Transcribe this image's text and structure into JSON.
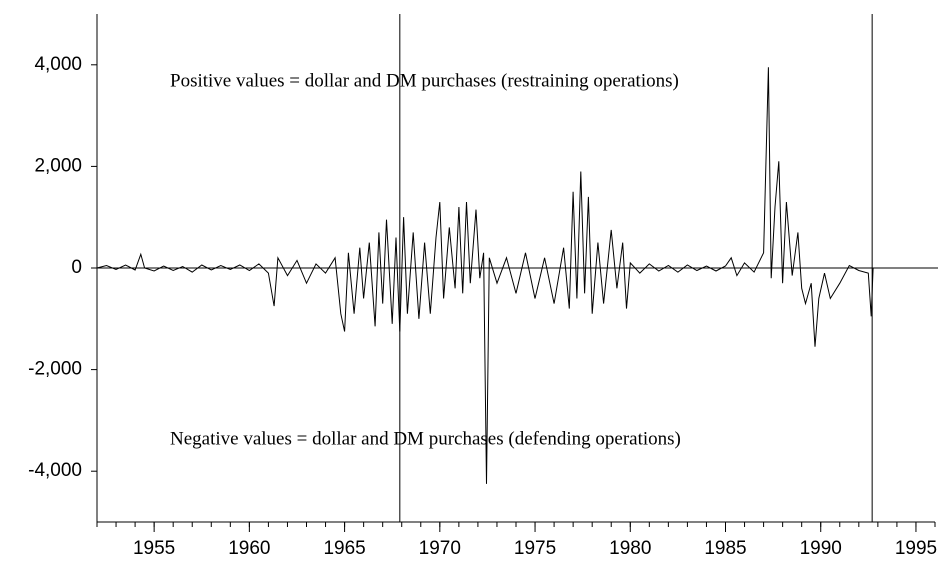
{
  "chart_data": {
    "type": "line",
    "annotations": [
      "Positive values = dollar and DM purchases (restraining operations)",
      "Negative values = dollar and DM purchases (defending operations)"
    ],
    "x": [
      1952.0,
      1952.5,
      1953.0,
      1953.5,
      1954.0,
      1954.3,
      1954.5,
      1955.0,
      1955.5,
      1956.0,
      1956.5,
      1957.0,
      1957.5,
      1958.0,
      1958.5,
      1959.0,
      1959.5,
      1960.0,
      1960.5,
      1961.0,
      1961.3,
      1961.5,
      1962.0,
      1962.5,
      1963.0,
      1963.5,
      1964.0,
      1964.5,
      1964.8,
      1965.0,
      1965.2,
      1965.5,
      1965.8,
      1966.0,
      1966.3,
      1966.6,
      1966.8,
      1967.0,
      1967.2,
      1967.5,
      1967.7,
      1967.9,
      1968.1,
      1968.3,
      1968.6,
      1968.9,
      1969.2,
      1969.5,
      1969.8,
      1970.0,
      1970.2,
      1970.5,
      1970.8,
      1971.0,
      1971.2,
      1971.4,
      1971.6,
      1971.9,
      1972.1,
      1972.3,
      1972.45,
      1972.6,
      1973.0,
      1973.5,
      1974.0,
      1974.5,
      1975.0,
      1975.5,
      1976.0,
      1976.5,
      1976.8,
      1977.0,
      1977.2,
      1977.4,
      1977.6,
      1977.8,
      1978.0,
      1978.3,
      1978.6,
      1979.0,
      1979.3,
      1979.6,
      1979.8,
      1980.0,
      1980.5,
      1981.0,
      1981.5,
      1982.0,
      1982.5,
      1983.0,
      1983.5,
      1984.0,
      1984.5,
      1985.0,
      1985.3,
      1985.6,
      1986.0,
      1986.5,
      1987.0,
      1987.25,
      1987.4,
      1987.6,
      1987.8,
      1988.0,
      1988.2,
      1988.5,
      1988.8,
      1989.0,
      1989.2,
      1989.5,
      1989.7,
      1989.9,
      1990.2,
      1990.5,
      1991.0,
      1991.5,
      1992.0,
      1992.5,
      1992.65,
      1992.75
    ],
    "series": [
      {
        "color": "#000000",
        "values": [
          0,
          50,
          -30,
          60,
          -40,
          270,
          0,
          -60,
          40,
          -50,
          30,
          -80,
          60,
          -40,
          50,
          -30,
          60,
          -50,
          80,
          -100,
          -750,
          200,
          -150,
          150,
          -300,
          80,
          -100,
          200,
          -900,
          -1250,
          300,
          -900,
          400,
          -600,
          500,
          -1150,
          700,
          -700,
          950,
          -1100,
          600,
          -1250,
          1000,
          -900,
          700,
          -1000,
          500,
          -900,
          600,
          1300,
          -600,
          800,
          -400,
          1200,
          -500,
          1300,
          -300,
          1150,
          -200,
          300,
          -4250,
          200,
          -300,
          200,
          -500,
          300,
          -600,
          200,
          -700,
          400,
          -800,
          1500,
          -600,
          1900,
          -500,
          1400,
          -900,
          500,
          -700,
          750,
          -400,
          500,
          -800,
          100,
          -100,
          80,
          -60,
          50,
          -80,
          60,
          -50,
          40,
          -60,
          40,
          200,
          -150,
          100,
          -80,
          300,
          3950,
          -200,
          1200,
          2100,
          -300,
          1300,
          -150,
          700,
          -400,
          -700,
          -300,
          -1550,
          -600,
          -100,
          -600,
          -300,
          50,
          -50,
          -100,
          -950,
          0
        ]
      }
    ],
    "xlim": [
      1952,
      1996
    ],
    "xticks": [
      1955,
      1960,
      1965,
      1970,
      1975,
      1980,
      1985,
      1990,
      1995
    ],
    "xminorticks": [
      1952,
      1953,
      1954,
      1955,
      1956,
      1957,
      1958,
      1959,
      1960,
      1961,
      1962,
      1963,
      1964,
      1965,
      1966,
      1967,
      1968,
      1969,
      1970,
      1971,
      1972,
      1973,
      1974,
      1975,
      1976,
      1977,
      1978,
      1979,
      1980,
      1981,
      1982,
      1983,
      1984,
      1985,
      1986,
      1987,
      1988,
      1989,
      1990,
      1991,
      1992,
      1993,
      1994,
      1995,
      1996
    ],
    "ylim": [
      -5000,
      5000
    ],
    "yticks": [
      {
        "value": -4000,
        "label": "-4,000"
      },
      {
        "value": -2000,
        "label": "-2,000"
      },
      0,
      {
        "value": 2000,
        "label": "2,000"
      },
      {
        "value": 4000,
        "label": "4,000"
      }
    ],
    "hline": 0,
    "vlines": [
      1967.9,
      1992.7
    ]
  }
}
